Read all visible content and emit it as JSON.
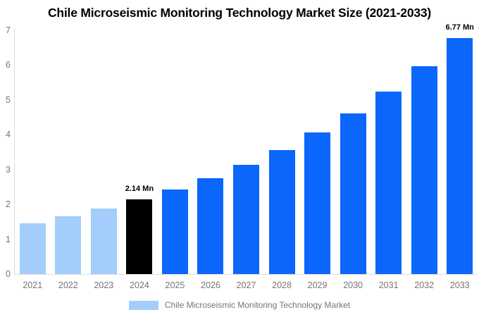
{
  "title": "Chile Microseismic Monitoring Technology Market Size (2021-2033)",
  "legend": {
    "label": "Chile Microseismic Monitoring Technology Market"
  },
  "colors": {
    "historical": "#a3cdfa",
    "current": "#000000",
    "forecast": "#0b66fb",
    "axis_text": "#757575",
    "axis_line": "#dcdcdc",
    "title_text": "#000000",
    "value_label_text": "#000000",
    "background": "#ffffff",
    "legend_swatch": "#a3cdfa"
  },
  "chart_data": {
    "type": "bar",
    "title": "Chile Microseismic Monitoring Technology Market Size (2021-2033)",
    "xlabel": "",
    "ylabel": "",
    "unit": "Mn",
    "ylim": [
      0,
      7
    ],
    "yticks": [
      0,
      1,
      2,
      3,
      4,
      5,
      6,
      7
    ],
    "grid": false,
    "legend_position": "bottom",
    "categories": [
      "2021",
      "2022",
      "2023",
      "2024",
      "2025",
      "2026",
      "2027",
      "2028",
      "2029",
      "2030",
      "2031",
      "2032",
      "2033"
    ],
    "values": [
      1.46,
      1.66,
      1.88,
      2.14,
      2.43,
      2.76,
      3.14,
      3.57,
      4.06,
      4.61,
      5.24,
      5.96,
      6.77
    ],
    "segments": [
      "historical",
      "historical",
      "historical",
      "current",
      "forecast",
      "forecast",
      "forecast",
      "forecast",
      "forecast",
      "forecast",
      "forecast",
      "forecast",
      "forecast"
    ],
    "point_labels": {
      "2024": "2.14 Mn",
      "2033": "6.77 Mn"
    }
  }
}
